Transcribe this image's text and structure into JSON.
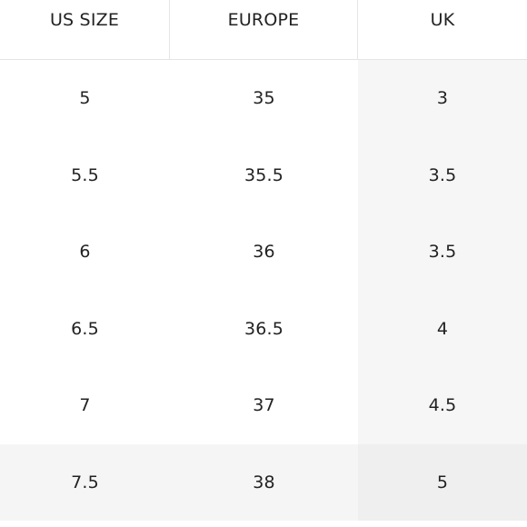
{
  "table": {
    "headers": [
      "US SIZE",
      "EUROPE",
      "UK"
    ],
    "rows": [
      [
        "5",
        "35",
        "3"
      ],
      [
        "5.5",
        "35.5",
        "3.5"
      ],
      [
        "6",
        "36",
        "3.5"
      ],
      [
        "6.5",
        "36.5",
        "4"
      ],
      [
        "7",
        "37",
        "4.5"
      ],
      [
        "7.5",
        "38",
        "5"
      ]
    ],
    "highlighted_row": "7.5"
  }
}
